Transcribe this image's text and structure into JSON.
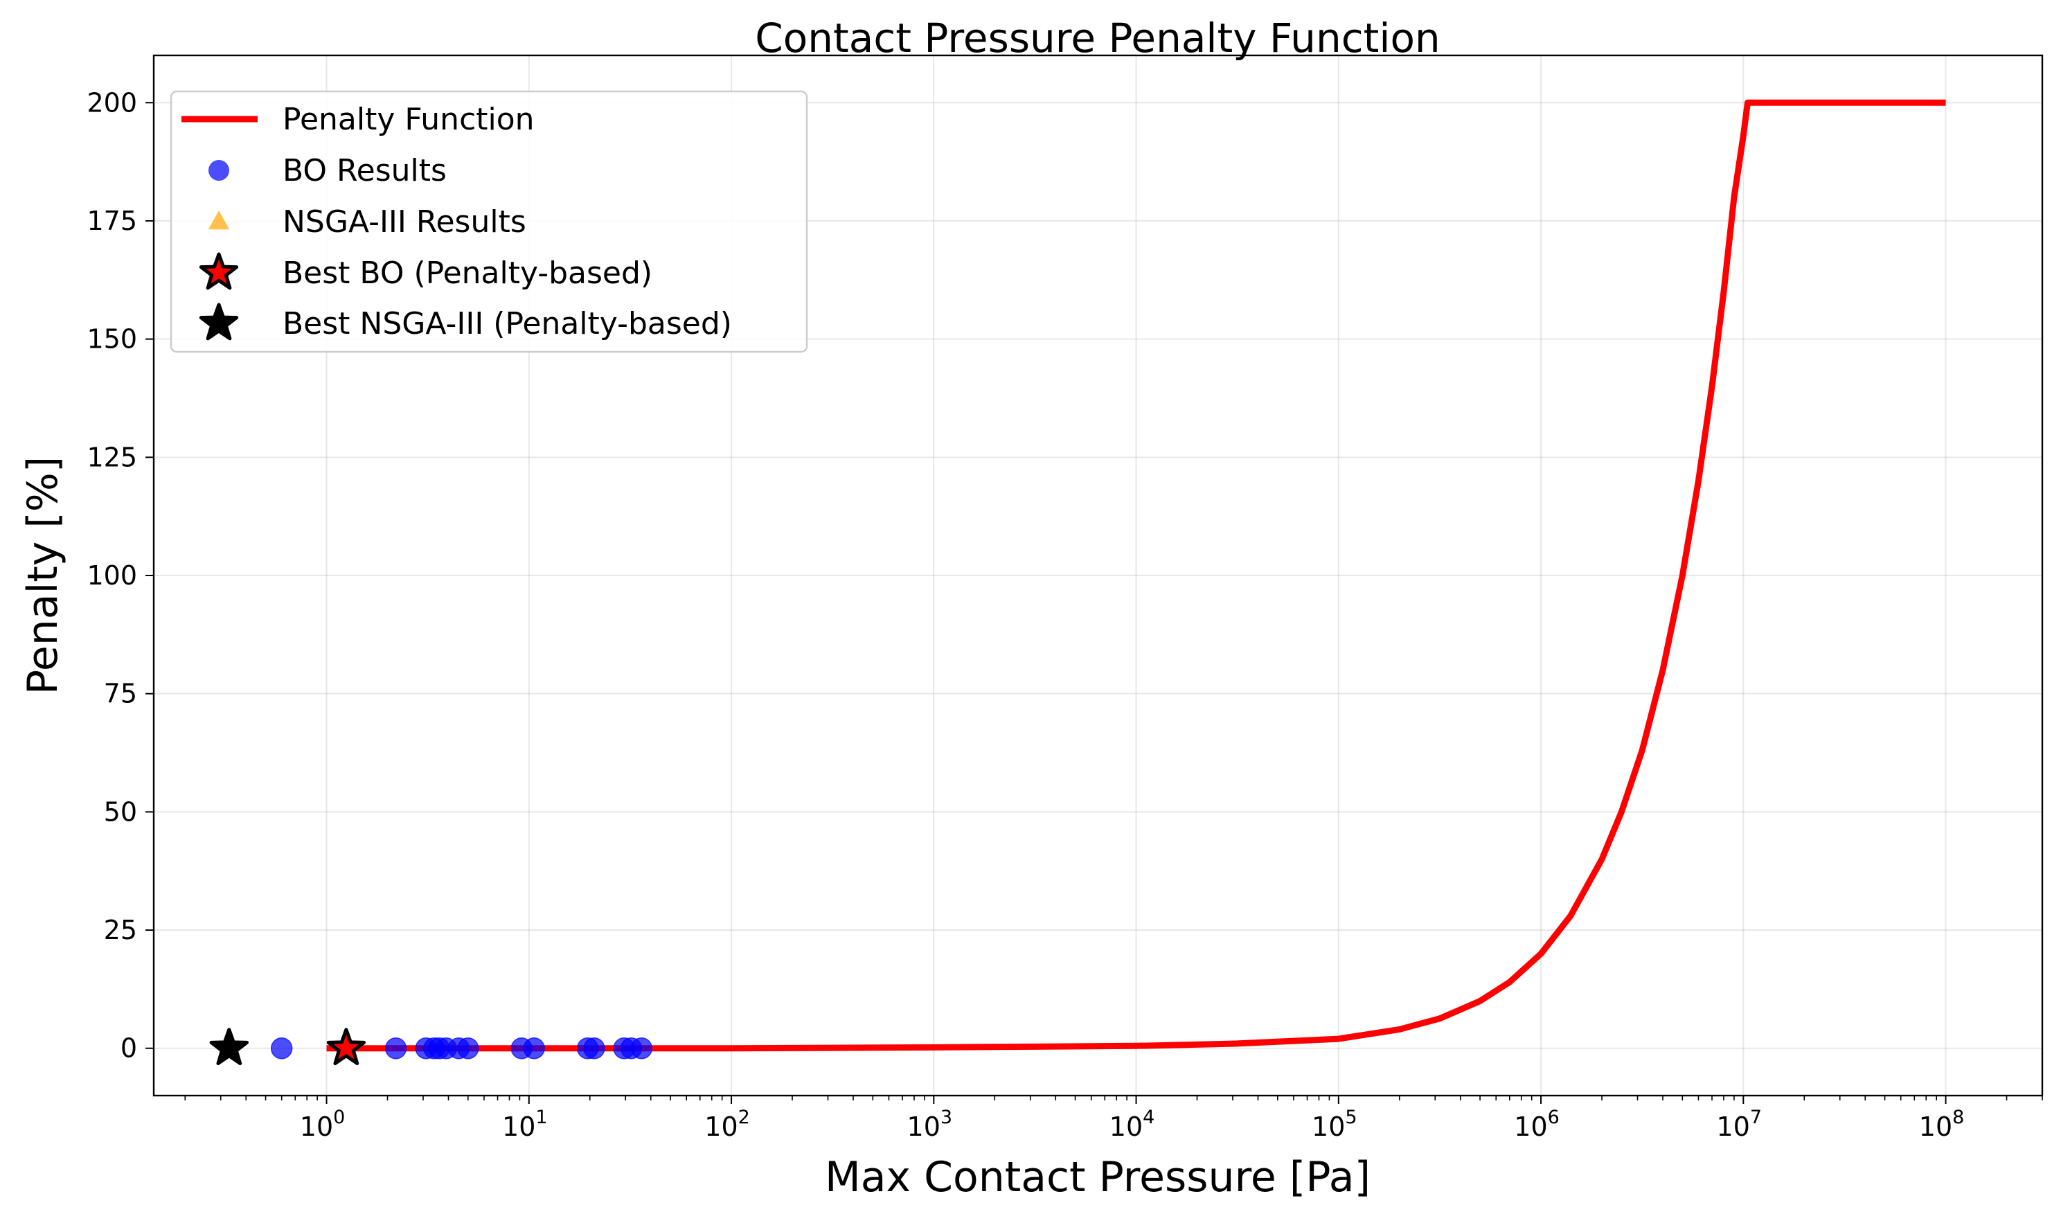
{
  "chart_data": {
    "type": "line",
    "title": "Contact Pressure Penalty Function",
    "xlabel": "Max Contact Pressure [Pa]",
    "ylabel": "Penalty [%]",
    "xscale": "log",
    "xlim": [
      0.14,
      300000000
    ],
    "ylim": [
      -10,
      210
    ],
    "grid": true,
    "legend_position": "upper-left",
    "x_ticks": [
      {
        "value": 1,
        "base": "10",
        "exp": "0"
      },
      {
        "value": 10,
        "base": "10",
        "exp": "1"
      },
      {
        "value": 100,
        "base": "10",
        "exp": "2"
      },
      {
        "value": 1000,
        "base": "10",
        "exp": "3"
      },
      {
        "value": 10000,
        "base": "10",
        "exp": "4"
      },
      {
        "value": 100000,
        "base": "10",
        "exp": "5"
      },
      {
        "value": 1000000,
        "base": "10",
        "exp": "6"
      },
      {
        "value": 10000000,
        "base": "10",
        "exp": "7"
      },
      {
        "value": 100000000,
        "base": "10",
        "exp": "8"
      }
    ],
    "y_ticks": [
      {
        "value": 0,
        "label": "0"
      },
      {
        "value": 25,
        "label": "25"
      },
      {
        "value": 50,
        "label": "50"
      },
      {
        "value": 75,
        "label": "75"
      },
      {
        "value": 100,
        "label": "100"
      },
      {
        "value": 125,
        "label": "125"
      },
      {
        "value": 150,
        "label": "150"
      },
      {
        "value": 175,
        "label": "175"
      },
      {
        "value": 200,
        "label": "200"
      }
    ],
    "series": [
      {
        "name": "Penalty Function",
        "kind": "line",
        "color": "#ff0000",
        "x": [
          1,
          10,
          100,
          1000,
          10000,
          31623,
          100000,
          200000,
          316228,
          500000,
          700000,
          1000000,
          1400000,
          2000000,
          2500000,
          3162278,
          4000000,
          5000000,
          6000000,
          7000000,
          8000000,
          9000000,
          10000000,
          10500000,
          100000000
        ],
        "y": [
          0,
          0,
          0,
          0.2,
          0.5,
          1.0,
          2.0,
          4.0,
          6.3,
          10.0,
          14.0,
          20.0,
          28.0,
          40.0,
          50.0,
          63.0,
          80.0,
          100.0,
          120.0,
          140.0,
          160.0,
          180.0,
          193.0,
          200.0,
          200.0
        ]
      },
      {
        "name": "BO Results",
        "kind": "scatter",
        "marker": "circle",
        "color": "#0000ff",
        "x": [
          0.6,
          2.2,
          3.1,
          3.4,
          3.6,
          3.9,
          4.5,
          5.0,
          9.2,
          10.6,
          19.5,
          21.0,
          29.5,
          32.0,
          36.0
        ],
        "y": [
          0,
          0,
          0,
          0,
          0,
          0,
          0,
          0,
          0,
          0,
          0,
          0,
          0,
          0,
          0
        ]
      },
      {
        "name": "NSGA-III Results",
        "kind": "scatter",
        "marker": "triangle",
        "color": "#ffa500",
        "x": [],
        "y": []
      },
      {
        "name": "Best BO (Penalty-based)",
        "kind": "scatter",
        "marker": "star",
        "color": "#ff0000",
        "x": [
          1.25
        ],
        "y": [
          0
        ]
      },
      {
        "name": "Best NSGA-III (Penalty-based)",
        "kind": "scatter",
        "marker": "star",
        "color": "#000000",
        "x": [
          0.33
        ],
        "y": [
          0
        ]
      }
    ]
  }
}
